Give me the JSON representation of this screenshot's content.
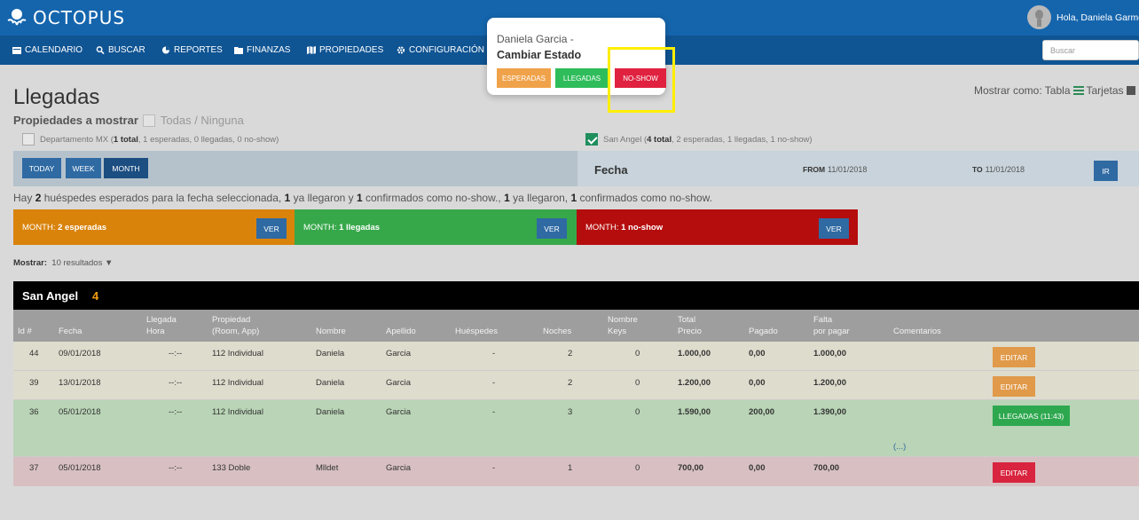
{
  "app": {
    "brand": "OCTOPUS",
    "greeting": "Hola, Daniela Garmon"
  },
  "nav": {
    "items": [
      {
        "label": "CALENDARIO",
        "icon": "calendar-icon"
      },
      {
        "label": "BUSCAR",
        "icon": "search-icon"
      },
      {
        "label": "REPORTES",
        "icon": "pie-chart-icon"
      },
      {
        "label": "FINANZAS",
        "icon": "folder-icon"
      },
      {
        "label": "PROPIEDADES",
        "icon": "map-icon"
      },
      {
        "label": "CONFIGURACIÓN",
        "icon": "gear-icon"
      }
    ],
    "search_placeholder": "Buscar"
  },
  "page": {
    "title": "Llegadas",
    "props_label": "Propiedades a mostrar",
    "props_all": "Todas / Ninguna",
    "display_as_label": "Mostrar como: Tabla",
    "display_as_cards": "Tarjetas"
  },
  "properties": [
    {
      "name": "Departamento MX (",
      "total": "1 total",
      "rest": ", 1 esperadas, 0 llegadas, 0 no-show)",
      "checked": false
    },
    {
      "name": "San Angel (",
      "total": "4 total",
      "rest": ", 2 esperadas, 1 llegadas, 1 no-show)",
      "checked": true
    }
  ],
  "filters": {
    "today": "TODAY",
    "week": "WEEK",
    "month": "MONTH",
    "fecha": "Fecha",
    "from_label": "FROM",
    "from_value": "11/01/2018",
    "to_label": "TO",
    "to_value": "11/01/2018",
    "go": "IR"
  },
  "summary": {
    "p1": "Hay ",
    "n1": "2",
    "p2": " huéspedes esperados para la fecha seleccionada, ",
    "n2": "1",
    "p3": " ya llegaron y ",
    "n3": "1",
    "p4": " confirmados como no-show., ",
    "n4": "1",
    "p5": " ya llegaron, ",
    "n5": "1",
    "p6": " confirmados como no-show."
  },
  "status_boxes": [
    {
      "prefix": "MONTH: ",
      "label": "2 esperadas",
      "button": "VER",
      "color": "#d9830b"
    },
    {
      "prefix": "MONTH: ",
      "label": "1 llegadas",
      "button": "VER",
      "color": "#37a84a"
    },
    {
      "prefix": "MONTH: ",
      "label": "1 no-show",
      "button": "VER",
      "color": "#b50d0d"
    }
  ],
  "results": {
    "label": "Mostrar:",
    "value": "10 resultados"
  },
  "table": {
    "property": "San Angel",
    "count": "4",
    "columns": [
      {
        "l1": "",
        "l2": "Id #"
      },
      {
        "l1": "",
        "l2": "Fecha"
      },
      {
        "l1": "Llegada",
        "l2": "Hora"
      },
      {
        "l1": "Propiedad",
        "l2": "(Room, App)"
      },
      {
        "l1": "",
        "l2": "Nombre"
      },
      {
        "l1": "",
        "l2": "Apellido"
      },
      {
        "l1": "",
        "l2": "Huéspedes"
      },
      {
        "l1": "",
        "l2": "Noches"
      },
      {
        "l1": "Nombre",
        "l2": "Keys"
      },
      {
        "l1": "Total",
        "l2": "Precio"
      },
      {
        "l1": "",
        "l2": "Pagado"
      },
      {
        "l1": "Falta",
        "l2": "por pagar"
      },
      {
        "l1": "",
        "l2": "Comentarios"
      }
    ],
    "rows": [
      {
        "id": "44",
        "fecha": "09/01/2018",
        "hora": "--:--",
        "propiedad": "112 Individual",
        "nombre": "Daniela",
        "apellido": "Garcia",
        "huespedes": "-",
        "noches": "2",
        "keys": "0",
        "total": "1.000,00",
        "pagado": "0,00",
        "falta": "1.000,00",
        "comentarios": "",
        "action": "EDITAR",
        "status": "esperada",
        "bg": "#dedccd",
        "btn_color": "#e09a4a"
      },
      {
        "id": "39",
        "fecha": "13/01/2018",
        "hora": "--:--",
        "propiedad": "112 Individual",
        "nombre": "Daniela",
        "apellido": "Garcia",
        "huespedes": "-",
        "noches": "2",
        "keys": "0",
        "total": "1.200,00",
        "pagado": "0,00",
        "falta": "1.200,00",
        "comentarios": "",
        "action": "EDITAR",
        "status": "esperada",
        "bg": "#dedccd",
        "btn_color": "#e09a4a"
      },
      {
        "id": "36",
        "fecha": "05/01/2018",
        "hora": "--:--",
        "propiedad": "112 Individual",
        "nombre": "Daniela",
        "apellido": "Garcia",
        "huespedes": "-",
        "noches": "3",
        "keys": "0",
        "total": "1.590,00",
        "pagado": "200,00",
        "falta": "1.390,00",
        "comentarios": "(...)",
        "action": "LLEGADAS (11:43)",
        "status": "llegada",
        "bg": "#b9d4b6",
        "btn_color": "#2ea84f"
      },
      {
        "id": "37",
        "fecha": "05/01/2018",
        "hora": "--:--",
        "propiedad": "133 Doble",
        "nombre": "Mlldet",
        "apellido": "Garcia",
        "huespedes": "-",
        "noches": "1",
        "keys": "0",
        "total": "700,00",
        "pagado": "0,00",
        "falta": "700,00",
        "comentarios": "",
        "action": "EDITAR",
        "status": "no-show",
        "bg": "#d8c0c2",
        "btn_color": "#d8243e"
      }
    ]
  },
  "popover": {
    "guest": "Daniela Garcia -",
    "heading": "Cambiar Estado",
    "buttons": [
      {
        "label": "ESPERADAS",
        "color": "#f0a24a"
      },
      {
        "label": "LLEGADAS",
        "color": "#2ebd5a"
      },
      {
        "label": "NO-SHOW",
        "color": "#e0213f"
      }
    ]
  },
  "colors": {
    "topbar": "#1565ad",
    "navbar": "#0f5493",
    "highlight": "#ffee00"
  }
}
